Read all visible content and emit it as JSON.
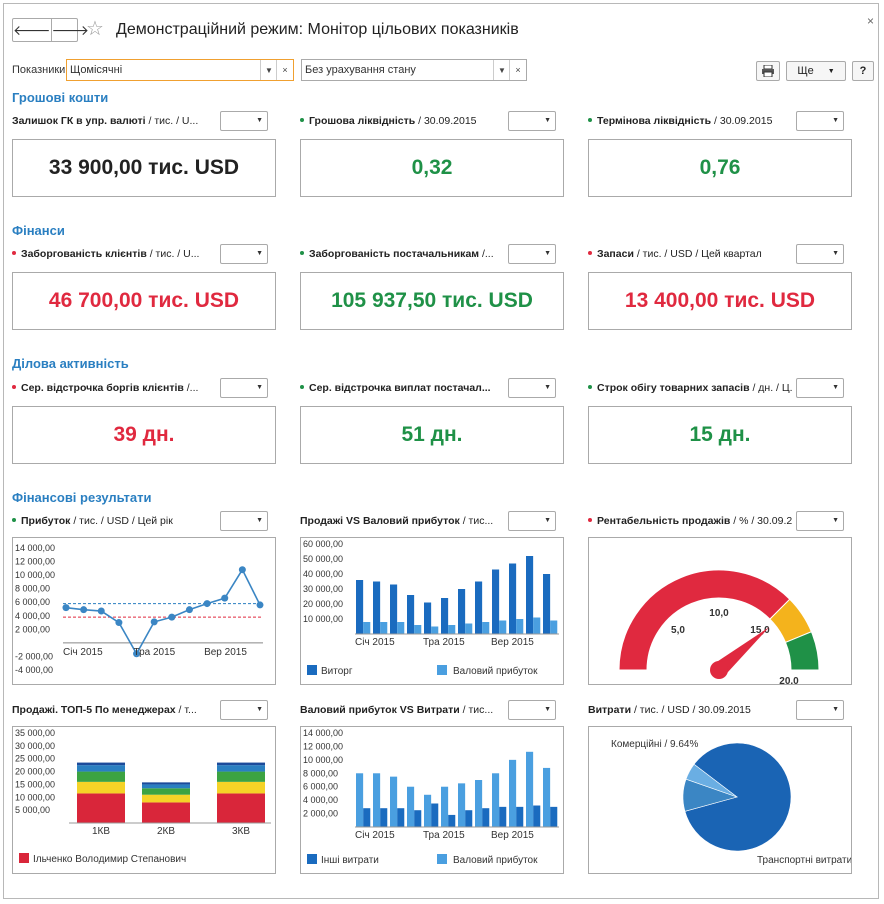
{
  "window": {
    "title": "Демонстраційний режим: Монітор цільових показників",
    "back": "🡐",
    "forward": "🡒",
    "star": "☆",
    "close": "×"
  },
  "filters": {
    "label": "Показники:",
    "period_value": "Щомісячні",
    "state_value": "Без урахування стану",
    "more_label": "Ще",
    "help_label": "?"
  },
  "colors": {
    "red": "#e0293f",
    "green": "#1f9147",
    "blue": "#2a7fc1",
    "dark_blue": "#1a6bbf",
    "light_blue": "#4a9fe0"
  },
  "sections": {
    "cash": "Грошові кошти",
    "finance": "Фінанси",
    "business": "Ділова активність",
    "results": "Фінансові результати"
  },
  "kpis": [
    {
      "title_bold": "Залишок ГК в упр. валюті",
      "title_rest": " / тис. / U...",
      "value": "33 900,00 тис. USD",
      "status": "none"
    },
    {
      "title_bold": "Грошова ліквідність",
      "title_rest": " / 30.09.2015",
      "value": "0,32",
      "status": "green"
    },
    {
      "title_bold": "Термінова ліквідність",
      "title_rest": " / 30.09.2015",
      "value": "0,76",
      "status": "green"
    },
    {
      "title_bold": "Заборгованість клієнтів",
      "title_rest": " / тис. / U...",
      "value": "46 700,00 тис. USD",
      "status": "red"
    },
    {
      "title_bold": "Заборгованість постачальникам",
      "title_rest": " /...",
      "value": "105 937,50 тис. USD",
      "status": "green"
    },
    {
      "title_bold": "Запаси",
      "title_rest": " / тис. / USD / Цей квартал",
      "value": "13 400,00 тис. USD",
      "status": "red"
    },
    {
      "title_bold": "Сер. відстрочка боргів клієнтів",
      "title_rest": " /...",
      "value": "39 дн.",
      "status": "red"
    },
    {
      "title_bold": "Сер. відстрочка виплат постачал...",
      "title_rest": "",
      "value": "51 дн.",
      "status": "green"
    },
    {
      "title_bold": "Строк обігу товарних запасів",
      "title_rest": " / дн. / Ц...",
      "value": "15 дн.",
      "status": "green"
    }
  ],
  "chart_titles": [
    {
      "title_bold": "Прибуток",
      "title_rest": " / тис. / USD / Цей рік",
      "status": "green"
    },
    {
      "title_bold": "Продажі VS Валовий прибуток",
      "title_rest": " / тис...",
      "status": "none"
    },
    {
      "title_bold": "Рентабельність продажів",
      "title_rest": " / % / 30.09.2...",
      "status": "red"
    },
    {
      "title_bold": "Продажі. ТОП-5 По менеджерах",
      "title_rest": " / т...",
      "status": "none"
    },
    {
      "title_bold": "Валовий прибуток VS Витрати",
      "title_rest": " / тис...",
      "status": "none"
    },
    {
      "title_bold": "Витрати",
      "title_rest": " / тис. / USD / 30.09.2015",
      "status": "none"
    }
  ],
  "chart_data": [
    {
      "type": "line",
      "yticks": [
        "14 000,00",
        "12 000,00",
        "10 000,00",
        "8 000,00",
        "6 000,00",
        "4 000,00",
        "2 000,00",
        "",
        "-2 000,00",
        "-4 000,00"
      ],
      "ylim": [
        -4000,
        14000
      ],
      "xticks": [
        "Січ 2015",
        "Тра 2015",
        "Вер 2015"
      ],
      "values": [
        5200,
        4900,
        4700,
        3000,
        -1600,
        3100,
        3800,
        4900,
        5800,
        6600,
        10800,
        5600
      ],
      "ref_lines": [
        5800,
        3800
      ]
    },
    {
      "type": "bar",
      "yticks": [
        "60 000,00",
        "50 000,00",
        "40 000,00",
        "30 000,00",
        "20 000,00",
        "10 000,00"
      ],
      "ylim": [
        0,
        60000
      ],
      "xticks": [
        "Січ 2015",
        "Тра 2015",
        "Вер 2015"
      ],
      "series": [
        {
          "name": "Виторг",
          "values": [
            36000,
            35000,
            33000,
            26000,
            21000,
            24000,
            30000,
            35000,
            43000,
            47000,
            52000,
            40000
          ]
        },
        {
          "name": "Валовий прибуток",
          "values": [
            8000,
            8000,
            8000,
            6000,
            5000,
            6000,
            7000,
            8000,
            9000,
            10000,
            11000,
            9000
          ]
        }
      ]
    },
    {
      "type": "gauge",
      "labels": [
        "5,0",
        "10,0",
        "15,0",
        "20,0"
      ],
      "min": 0,
      "max": 20,
      "value": 15.5
    },
    {
      "type": "bar",
      "stacked": true,
      "yticks": [
        "35 000,00",
        "30 000,00",
        "25 000,00",
        "20 000,00",
        "15 000,00",
        "10 000,00",
        "5 000,00"
      ],
      "ylim": [
        0,
        35000
      ],
      "categories": [
        "1КВ",
        "2КВ",
        "3КВ"
      ],
      "series": [
        {
          "name": "Ільченко Володимир Степанович",
          "values": [
            11500,
            8000,
            11500
          ]
        },
        {
          "name": "",
          "values": [
            4500,
            3000,
            4500
          ]
        },
        {
          "name": "",
          "values": [
            4000,
            2500,
            4000
          ]
        },
        {
          "name": "",
          "values": [
            2500,
            1500,
            2500
          ]
        },
        {
          "name": "",
          "values": [
            1000,
            800,
            1000
          ]
        }
      ]
    },
    {
      "type": "bar",
      "yticks": [
        "14 000,00",
        "12 000,00",
        "10 000,00",
        "8 000,00",
        "6 000,00",
        "4 000,00",
        "2 000,00"
      ],
      "ylim": [
        0,
        14000
      ],
      "xticks": [
        "Січ 2015",
        "Тра 2015",
        "Вер 2015"
      ],
      "series": [
        {
          "name": "Інші витрати",
          "values": [
            2800,
            2800,
            2800,
            2500,
            3500,
            1800,
            2500,
            2800,
            3000,
            3000,
            3200,
            3000
          ]
        },
        {
          "name": "Валовий прибуток",
          "values": [
            8000,
            8000,
            7500,
            6000,
            4800,
            6000,
            6500,
            7000,
            8000,
            10000,
            11200,
            8800
          ]
        }
      ]
    },
    {
      "type": "pie",
      "slices": [
        {
          "name": "Транспортні витрати...",
          "percent": 85.36
        },
        {
          "name": "Комерційні",
          "percent": 9.64
        },
        {
          "name": "",
          "percent": 5.0
        }
      ],
      "labels": [
        "Комерційні / 9.64%",
        "Транспортні витрати..."
      ]
    }
  ]
}
